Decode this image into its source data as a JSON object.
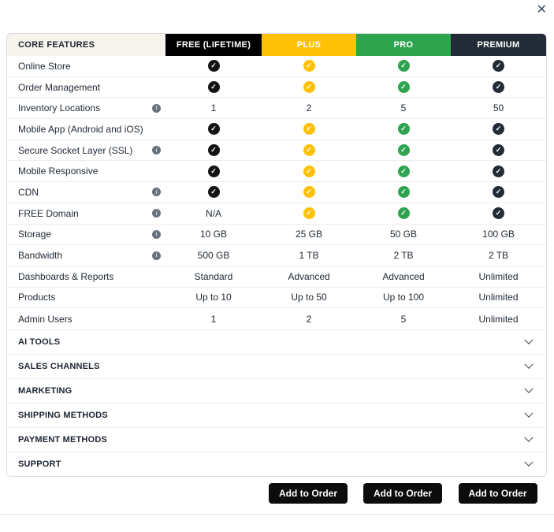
{
  "close_label": "✕",
  "table": {
    "features_header": "CORE FEATURES",
    "plans": [
      {
        "name": "FREE (LIFETIME)",
        "color": "#000000",
        "check_color": "#141414"
      },
      {
        "name": "PLUS",
        "color": "#FFC107",
        "check_color": "#FFC107"
      },
      {
        "name": "PRO",
        "color": "#2EA44F",
        "check_color": "#2EA44F"
      },
      {
        "name": "PREMIUM",
        "color": "#222B36",
        "check_color": "#222B36"
      }
    ],
    "rows": [
      {
        "feature": "Online Store",
        "info": false,
        "values": [
          "check",
          "check",
          "check",
          "check"
        ]
      },
      {
        "feature": "Order Management",
        "info": false,
        "values": [
          "check",
          "check",
          "check",
          "check"
        ]
      },
      {
        "feature": "Inventory Locations",
        "info": true,
        "values": [
          "1",
          "2",
          "5",
          "50"
        ]
      },
      {
        "feature": "Mobile App (Android and iOS)",
        "info": false,
        "values": [
          "check",
          "check",
          "check",
          "check"
        ]
      },
      {
        "feature": "Secure Socket Layer (SSL)",
        "info": true,
        "values": [
          "check",
          "check",
          "check",
          "check"
        ]
      },
      {
        "feature": "Mobile Responsive",
        "info": false,
        "values": [
          "check",
          "check",
          "check",
          "check"
        ]
      },
      {
        "feature": "CDN",
        "info": true,
        "values": [
          "check",
          "check",
          "check",
          "check"
        ]
      },
      {
        "feature": "FREE Domain",
        "info": true,
        "values": [
          "N/A",
          "check",
          "check",
          "check"
        ]
      },
      {
        "feature": "Storage",
        "info": true,
        "values": [
          "10 GB",
          "25 GB",
          "50 GB",
          "100 GB"
        ]
      },
      {
        "feature": "Bandwidth",
        "info": true,
        "values": [
          "500 GB",
          "1 TB",
          "2 TB",
          "2 TB"
        ]
      },
      {
        "feature": "Dashboards & Reports",
        "info": false,
        "values": [
          "Standard",
          "Advanced",
          "Advanced",
          "Unlimited"
        ]
      },
      {
        "feature": "Products",
        "info": false,
        "values": [
          "Up to 10",
          "Up to 50",
          "Up to 100",
          "Unlimited"
        ]
      },
      {
        "feature": "Admin Users",
        "info": false,
        "values": [
          "1",
          "2",
          "5",
          "Unlimited"
        ]
      }
    ],
    "sections": [
      {
        "label": "AI TOOLS"
      },
      {
        "label": "SALES CHANNELS"
      },
      {
        "label": "MARKETING"
      },
      {
        "label": "SHIPPING METHODS"
      },
      {
        "label": "PAYMENT METHODS"
      },
      {
        "label": "SUPPORT"
      }
    ],
    "order_button_label": "Add to Order",
    "order_button_plans": [
      "PLUS",
      "PRO",
      "PREMIUM"
    ],
    "icons": {
      "check_glyph": "✓",
      "info_glyph": "i"
    }
  }
}
